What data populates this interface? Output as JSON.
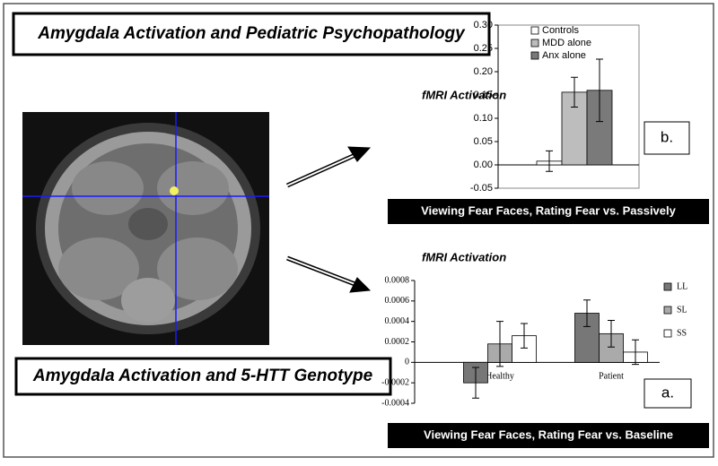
{
  "titles": {
    "top": "Amygdala Activation and Pediatric Psychopathology",
    "bottom": "Amygdala Activation and 5-HTT Genotype"
  },
  "chart_data": [
    {
      "type": "bar",
      "y_label": "fMRI Activation",
      "panel_label": "b.",
      "caption": "Viewing Fear Faces, Rating Fear vs. Passively",
      "categories": [
        null
      ],
      "series": [
        {
          "name": "Controls",
          "color": "#ffffff",
          "values": [
            0.008
          ],
          "errors": [
            0.022
          ]
        },
        {
          "name": "MDD alone",
          "color": "#bdbdbd",
          "values": [
            0.156
          ],
          "errors": [
            0.032
          ]
        },
        {
          "name": "Anx alone",
          "color": "#7a7a7a",
          "values": [
            0.16
          ],
          "errors": [
            0.067
          ]
        }
      ],
      "ylim": [
        -0.05,
        0.3
      ],
      "yticks": [
        {
          "value": -0.05,
          "label": "-0.05"
        },
        {
          "value": 0,
          "label": "0.00"
        },
        {
          "value": 0.05,
          "label": "0.05"
        },
        {
          "value": 0.1,
          "label": "0.10"
        },
        {
          "value": 0.15,
          "label": "0.15"
        },
        {
          "value": 0.2,
          "label": "0.20"
        },
        {
          "value": 0.25,
          "label": "0.25"
        },
        {
          "value": 0.3,
          "label": "0.30"
        }
      ],
      "legend": "top-left"
    },
    {
      "type": "bar",
      "y_label": "fMRI Activation",
      "panel_label": "a.",
      "caption": "Viewing Fear Faces, Rating Fear vs. Baseline",
      "categories": [
        "Healthy",
        "Patient"
      ],
      "series": [
        {
          "name": "LL",
          "color": "#777777",
          "values": [
            -0.0002,
            0.00048
          ],
          "errors": [
            0.00015,
            0.00013
          ]
        },
        {
          "name": "SL",
          "color": "#aaaaaa",
          "values": [
            0.00018,
            0.00028
          ],
          "errors": [
            0.00022,
            0.00013
          ]
        },
        {
          "name": "SS",
          "color": "#ffffff",
          "values": [
            0.00026,
            0.0001
          ],
          "errors": [
            0.00012,
            0.00012
          ]
        }
      ],
      "ylim": [
        -0.0004,
        0.0008
      ],
      "yticks": [
        -0.0004,
        -0.0002,
        0,
        0.0002,
        0.0004,
        0.0006,
        0.0008
      ],
      "legend": "right"
    }
  ]
}
